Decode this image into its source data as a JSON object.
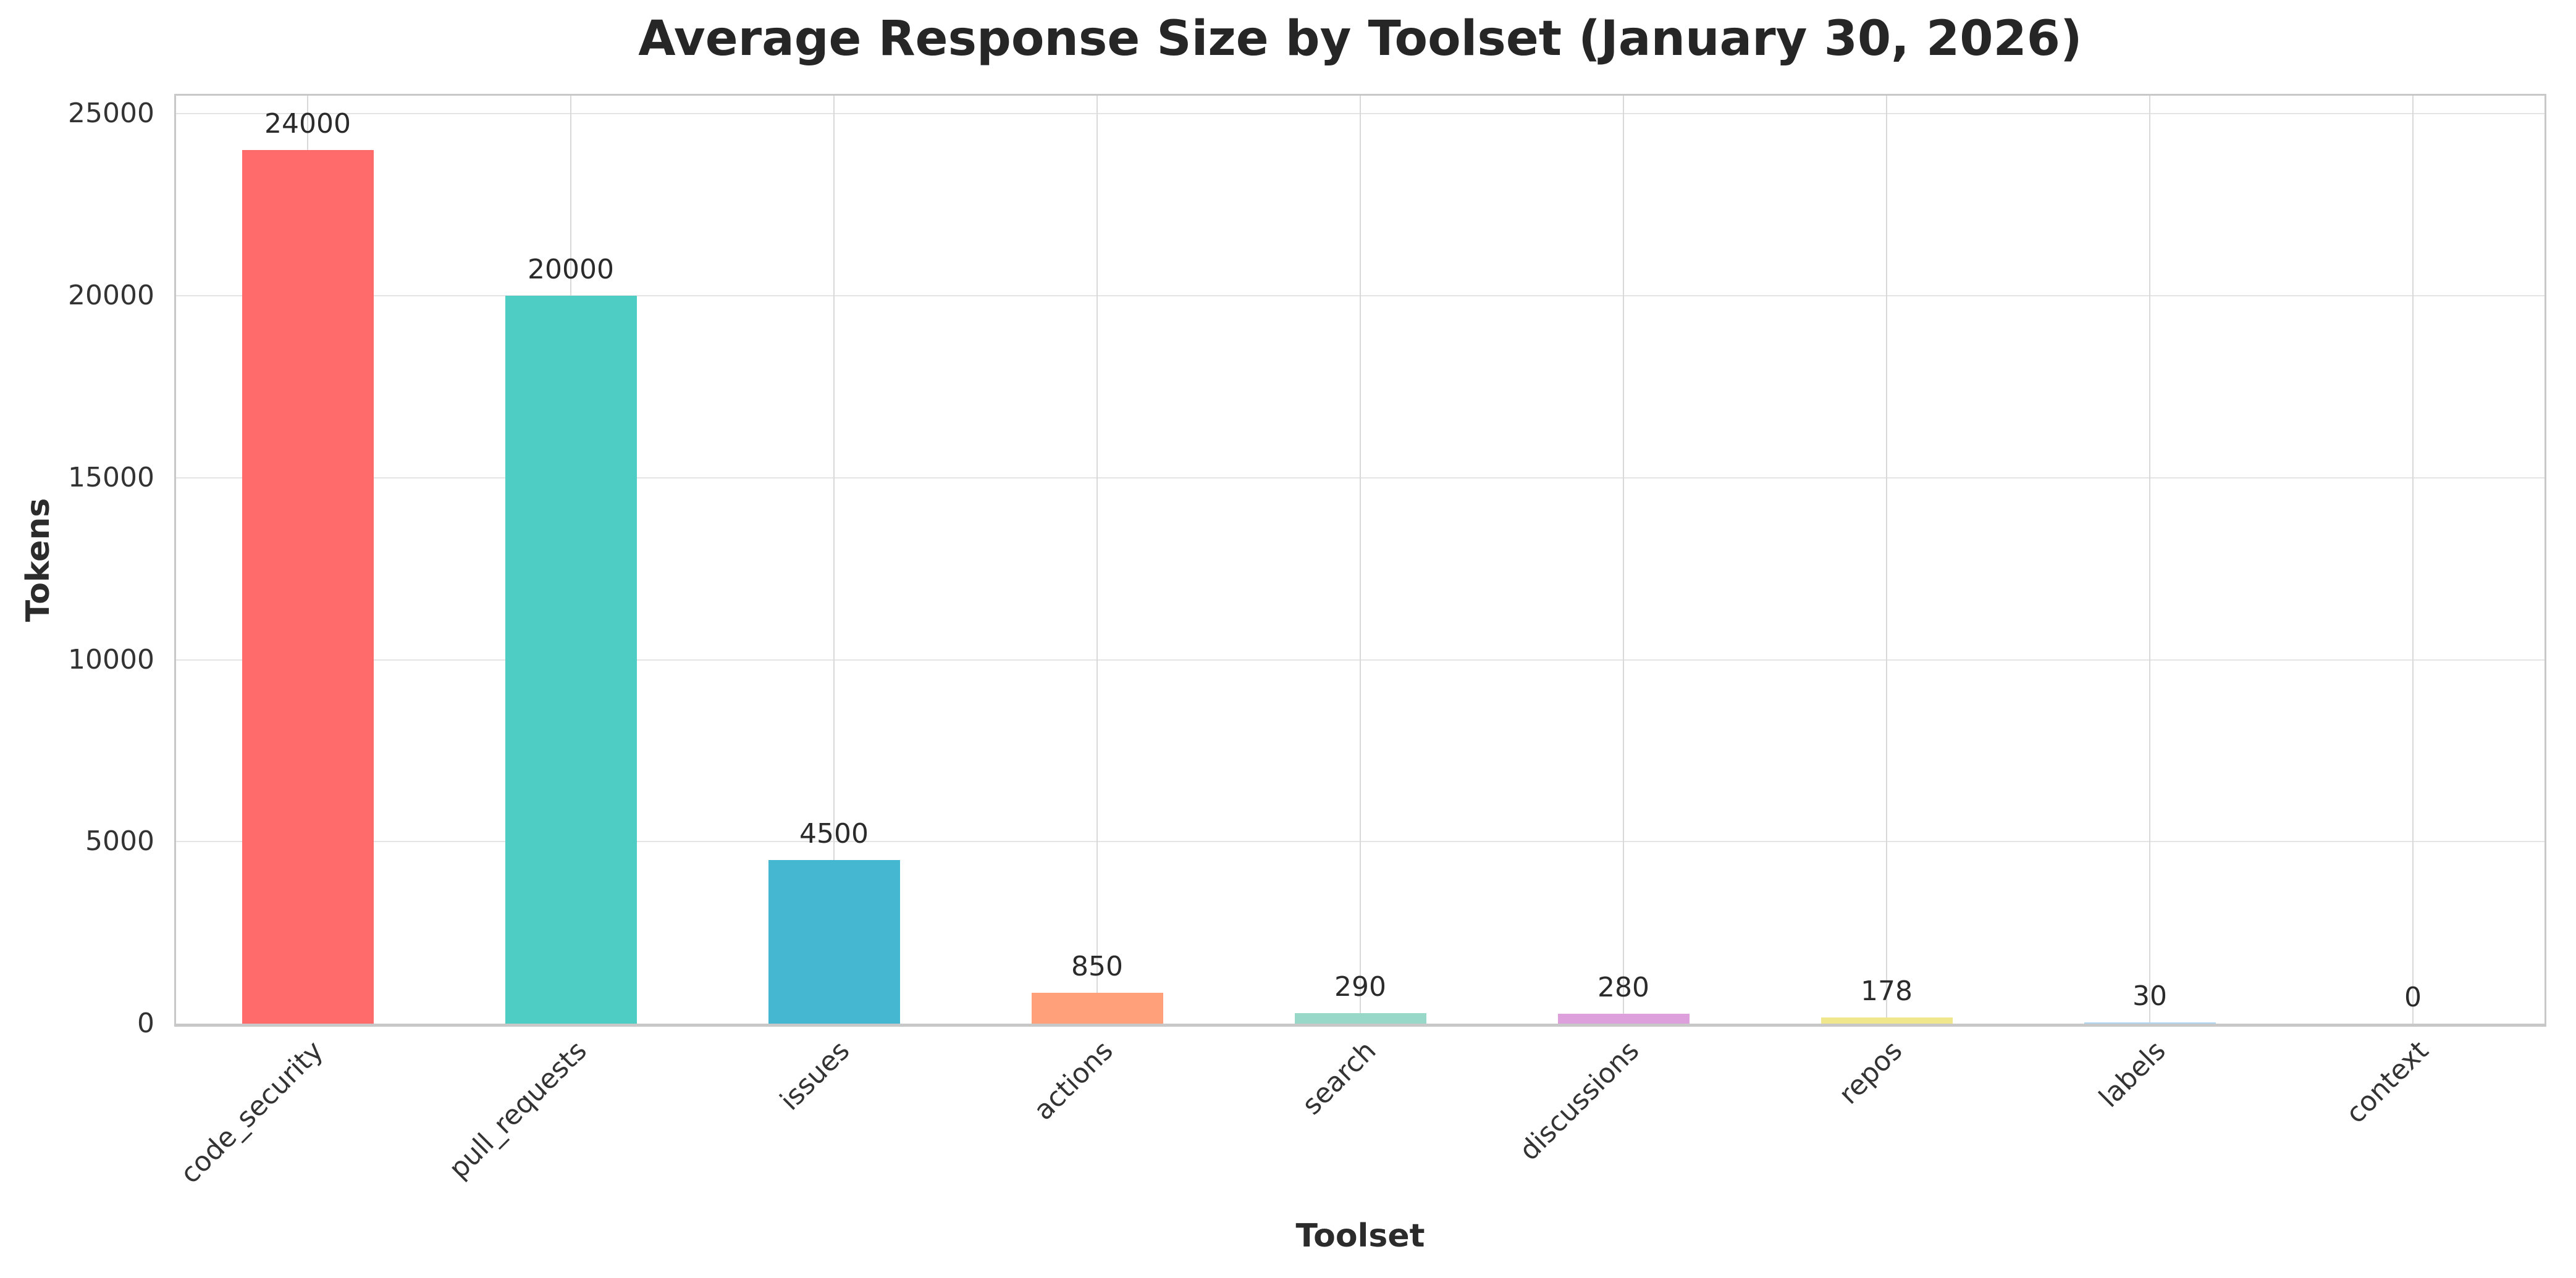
{
  "chart_data": {
    "type": "bar",
    "title": "Average Response Size by Toolset (January 30, 2026)",
    "xlabel": "Toolset",
    "ylabel": "Tokens",
    "categories": [
      "code_security",
      "pull_requests",
      "issues",
      "actions",
      "search",
      "discussions",
      "repos",
      "labels",
      "context"
    ],
    "values": [
      24000,
      20000,
      4500,
      850,
      290,
      280,
      178,
      30,
      0
    ],
    "value_labels": [
      "24000",
      "20000",
      "4500",
      "850",
      "290",
      "280",
      "178",
      "30",
      "0"
    ],
    "bar_colors": [
      "#FF6B6B",
      "#4ECDC4",
      "#45B7D1",
      "#FFA07A",
      "#98D8C8",
      "#DDA0DD",
      "#F0E68C",
      "#AED6F1",
      "#D5B8D5"
    ],
    "yticks": [
      0,
      5000,
      10000,
      15000,
      20000,
      25000
    ],
    "ytick_labels": [
      "0",
      "5000",
      "10000",
      "15000",
      "20000",
      "25000"
    ],
    "ylim": [
      0,
      25500
    ],
    "grid": "horizontal-and-vertical",
    "legend": "none",
    "bar_width_fraction": 0.5,
    "x_label_rotation_deg": 45
  },
  "theme": {
    "background": "#ffffff",
    "spine_color": "#c8c8c8",
    "h_grid_color": "#e4e4e4",
    "v_grid_color": "#d9d9d9",
    "title_color": "#262626",
    "tick_text_color": "#333333",
    "label_text_color": "#2b2b2b"
  }
}
